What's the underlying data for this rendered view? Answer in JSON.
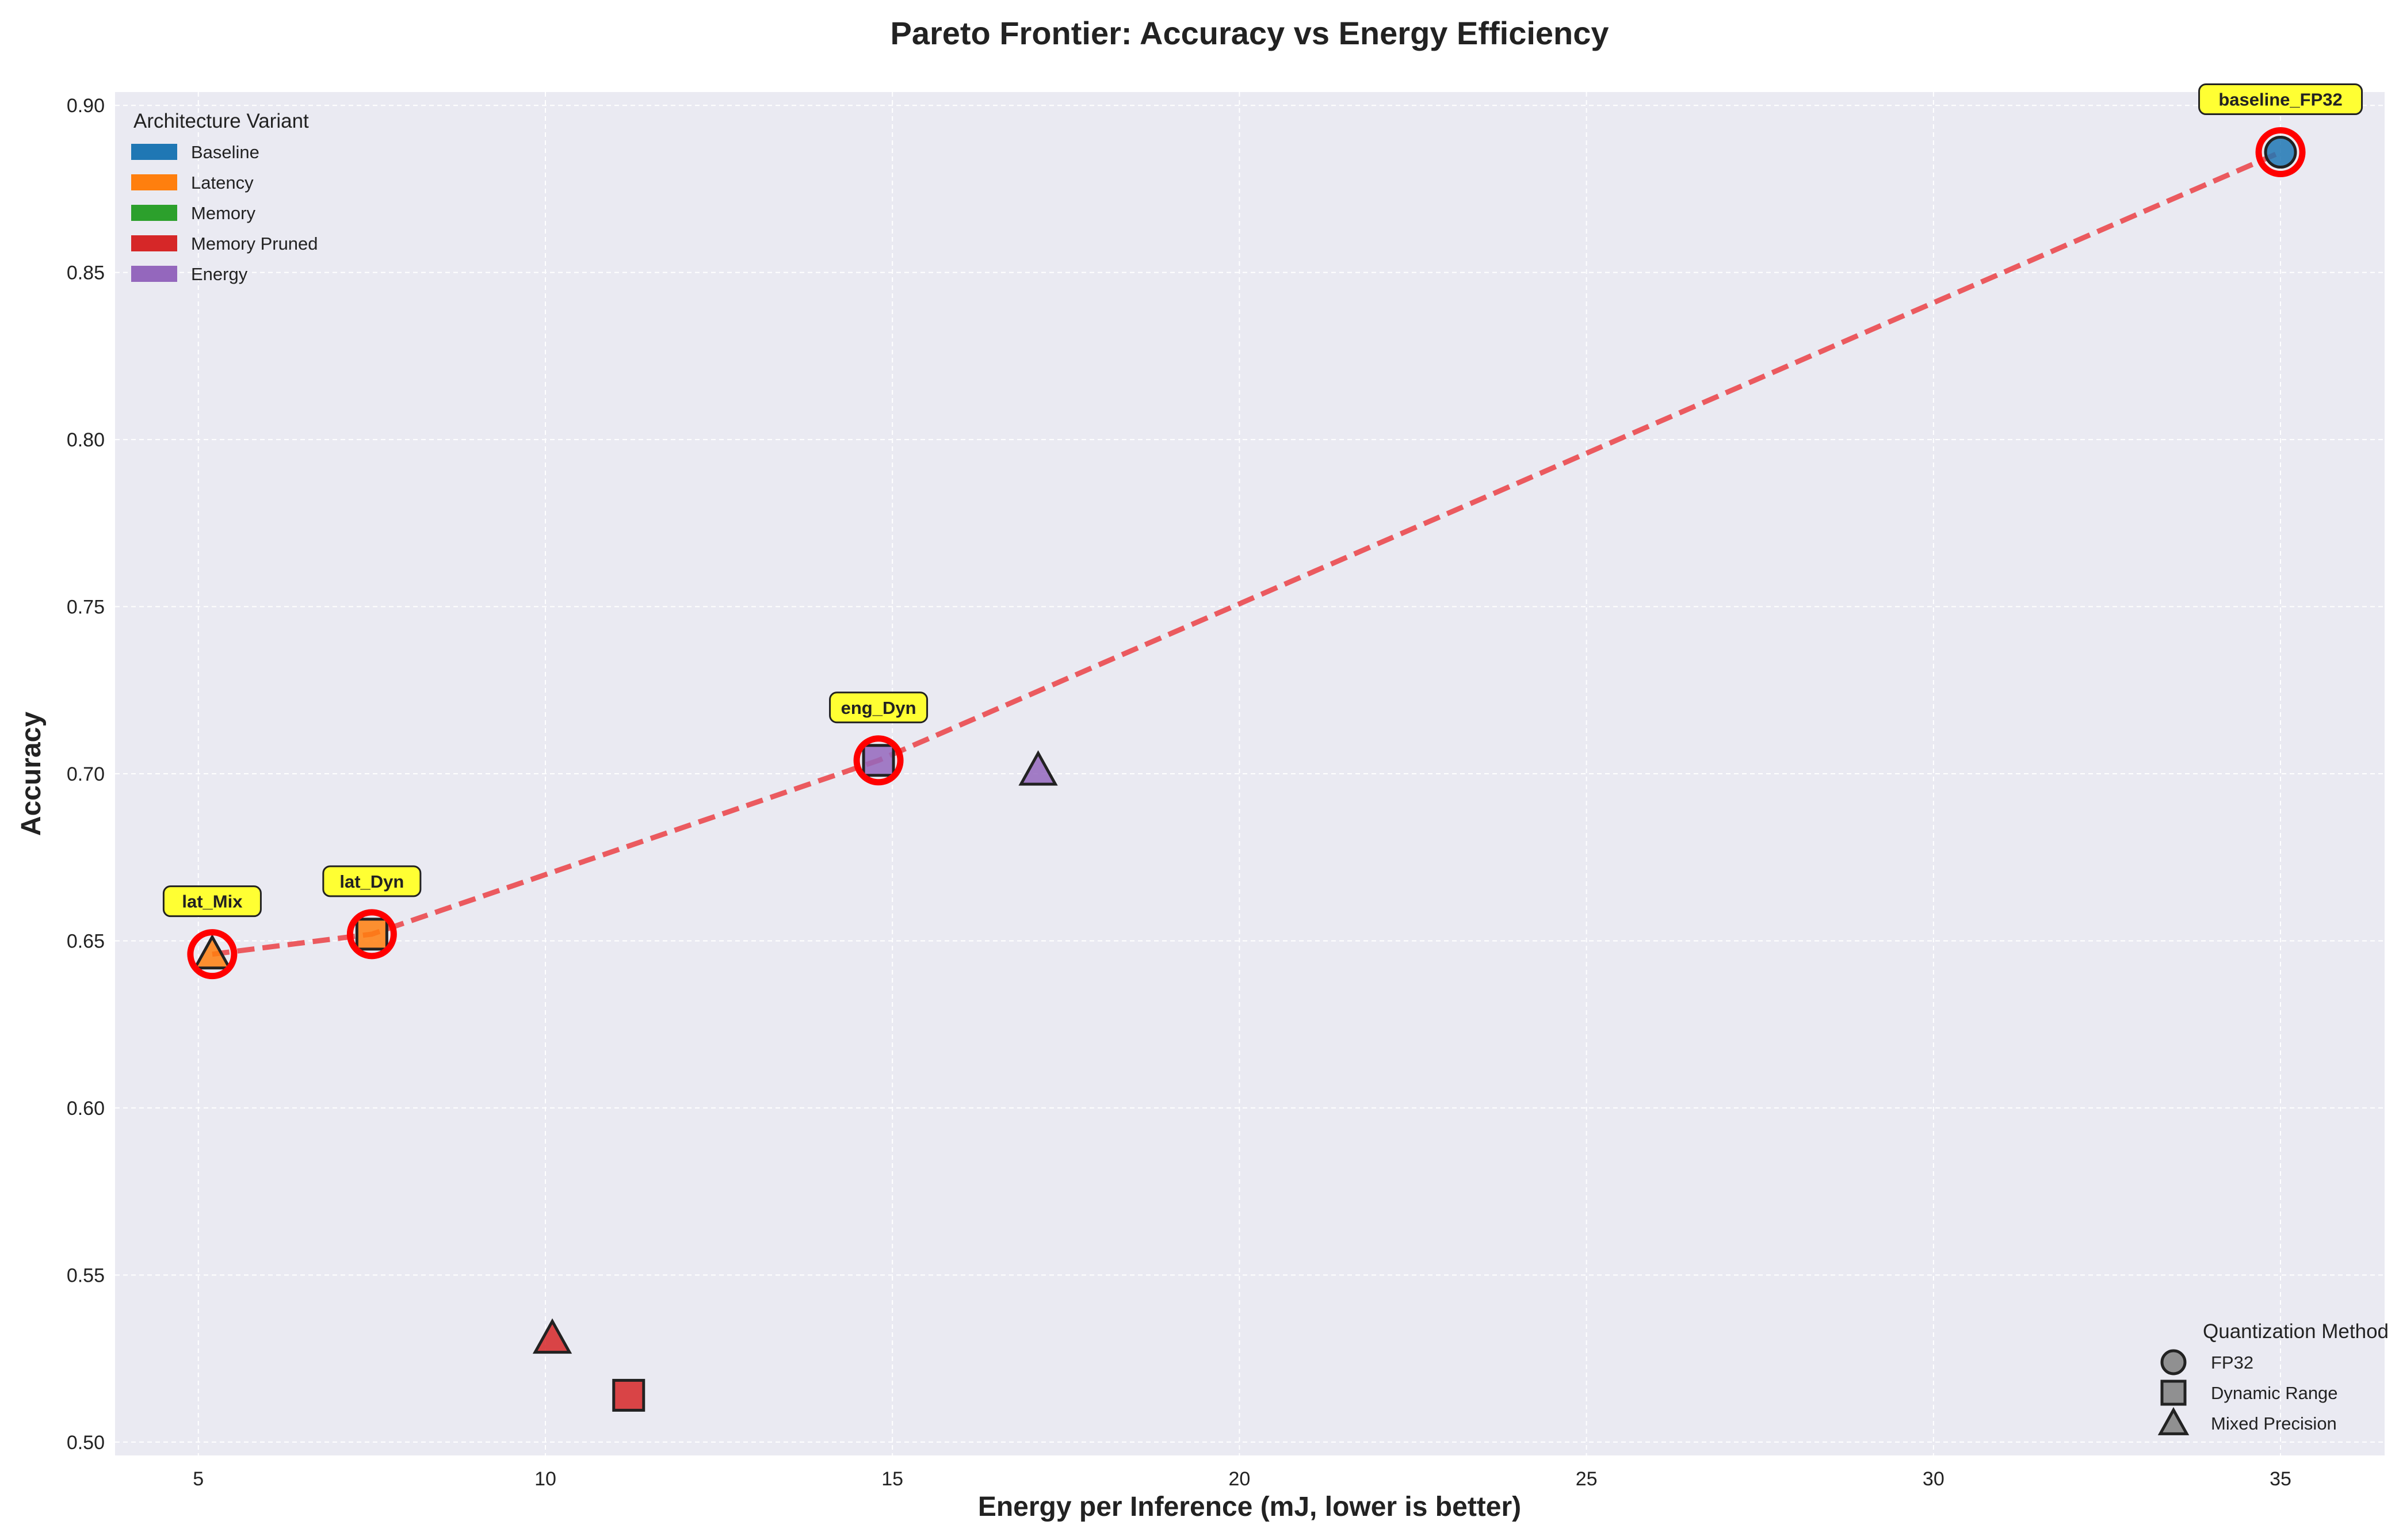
{
  "chart_data": {
    "type": "scatter",
    "title": "Pareto Frontier: Accuracy vs Energy Efficiency",
    "xlabel": "Energy per Inference (mJ, lower is better)",
    "ylabel": "Accuracy",
    "xlim": [
      3.8,
      36.5
    ],
    "ylim": [
      0.496,
      0.904
    ],
    "xticks": [
      5,
      10,
      15,
      20,
      25,
      30,
      35
    ],
    "yticks": [
      0.5,
      0.55,
      0.6,
      0.65,
      0.7,
      0.75,
      0.8,
      0.85,
      0.9
    ],
    "xtick_labels": [
      "5",
      "10",
      "15",
      "20",
      "25",
      "30",
      "35"
    ],
    "ytick_labels": [
      "0.50",
      "0.55",
      "0.60",
      "0.65",
      "0.70",
      "0.75",
      "0.80",
      "0.85",
      "0.90"
    ],
    "grid": true,
    "color_legend": {
      "title": "Architecture Variant",
      "position": "top-left",
      "entries": [
        {
          "label": "Baseline",
          "color": "#1f77b4"
        },
        {
          "label": "Latency",
          "color": "#ff7f0e"
        },
        {
          "label": "Memory",
          "color": "#2ca02c"
        },
        {
          "label": "Memory Pruned",
          "color": "#d62728"
        },
        {
          "label": "Energy",
          "color": "#9467bd"
        }
      ]
    },
    "marker_legend": {
      "title": "Quantization Method",
      "position": "bottom-right",
      "entries": [
        {
          "label": "FP32",
          "marker": "circle"
        },
        {
          "label": "Dynamic Range",
          "marker": "square"
        },
        {
          "label": "Mixed Precision",
          "marker": "triangle"
        }
      ]
    },
    "points": [
      {
        "x": 35.0,
        "y": 0.886,
        "variant": "Baseline",
        "marker": "circle",
        "pareto": true
      },
      {
        "x": 5.2,
        "y": 0.646,
        "variant": "Latency",
        "marker": "triangle",
        "pareto": true
      },
      {
        "x": 7.5,
        "y": 0.652,
        "variant": "Latency",
        "marker": "square",
        "pareto": true
      },
      {
        "x": 14.8,
        "y": 0.704,
        "variant": "Energy",
        "marker": "square",
        "pareto": true
      },
      {
        "x": 17.1,
        "y": 0.701,
        "variant": "Energy",
        "marker": "triangle",
        "pareto": false
      },
      {
        "x": 10.1,
        "y": 0.531,
        "variant": "Memory Pruned",
        "marker": "triangle",
        "pareto": false
      },
      {
        "x": 11.2,
        "y": 0.514,
        "variant": "Memory Pruned",
        "marker": "square",
        "pareto": false
      }
    ],
    "pareto_line": {
      "color": "#eb5a5f",
      "style": "dashed",
      "x": [
        5.2,
        7.5,
        14.8,
        35.0
      ],
      "y": [
        0.646,
        0.652,
        0.704,
        0.886
      ]
    },
    "annotations": [
      {
        "text": "baseline_FP32",
        "x": 35.0,
        "y": 0.886
      },
      {
        "text": "lat_Mix",
        "x": 5.2,
        "y": 0.646
      },
      {
        "text": "lat_Dyn",
        "x": 7.5,
        "y": 0.652
      },
      {
        "text": "eng_Dyn",
        "x": 14.8,
        "y": 0.704
      }
    ],
    "colors": {
      "plot_background": "#eaeaf2",
      "grid": "#ffffff",
      "pareto_highlight": "#ff0000",
      "annotation_fill": "#ffff33"
    }
  }
}
